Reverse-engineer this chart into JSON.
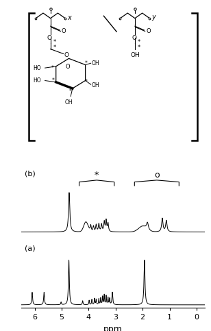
{
  "title": "",
  "xlabel": "ppm",
  "xlim": [
    6.5,
    -0.3
  ],
  "xticks": [
    6,
    5,
    4,
    3,
    2,
    1,
    0
  ],
  "background_color": "#ffffff",
  "spectrum_color": "#000000",
  "fig_width": 3.08,
  "fig_height": 4.83,
  "dpi": 100,
  "label_a": "(a)",
  "label_b": "(b)",
  "annot_star": "*",
  "annot_circle": "o"
}
